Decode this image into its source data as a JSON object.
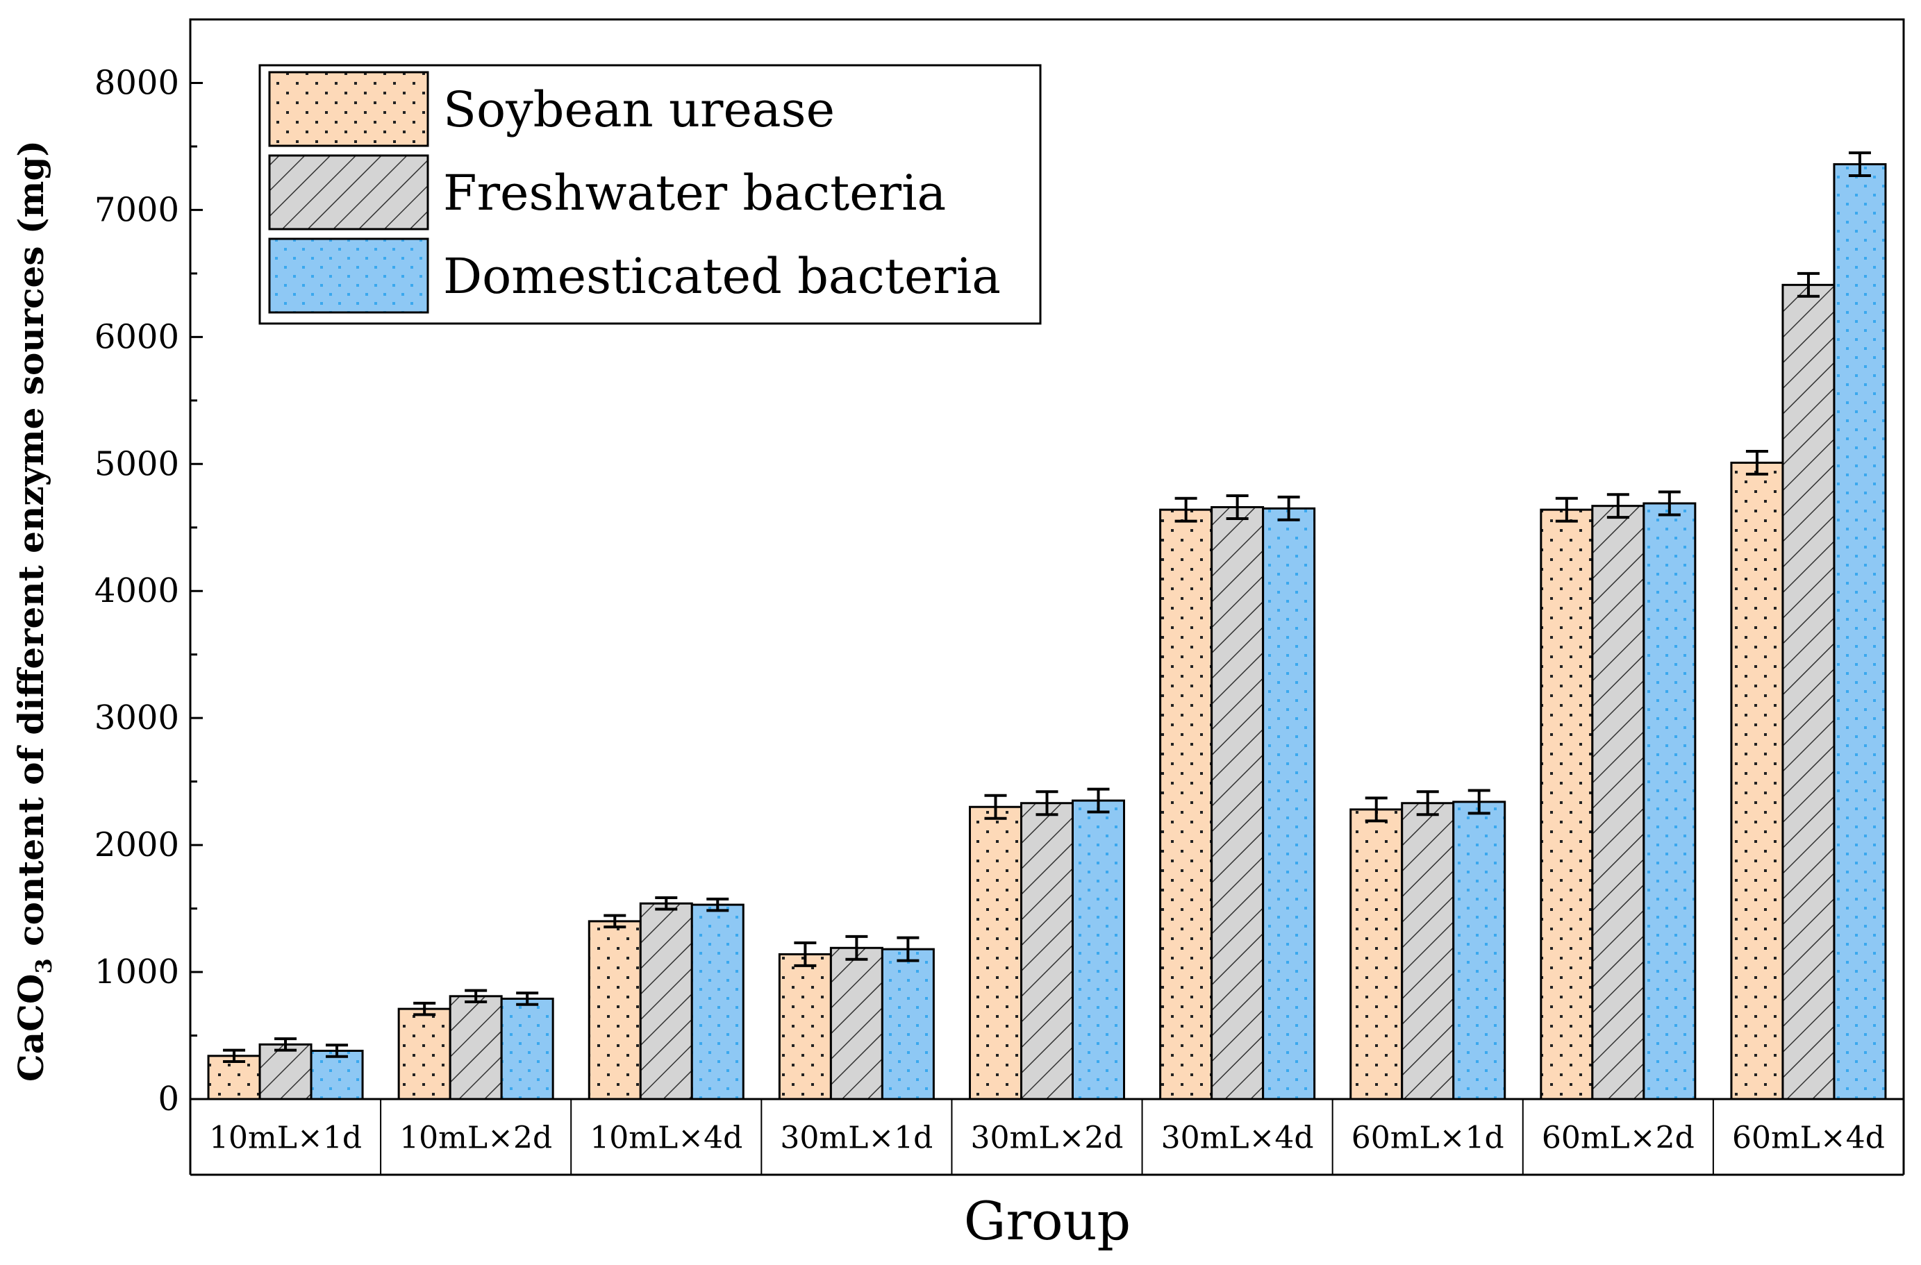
{
  "chart_data": {
    "type": "bar",
    "title": "",
    "xlabel": "Group",
    "ylabel": {
      "prefix": "CaCO",
      "subscript": "3",
      "suffix": " content of different enzyme sources (mg)"
    },
    "ylim": [
      0,
      8500
    ],
    "yticks": [
      0,
      1000,
      2000,
      3000,
      4000,
      5000,
      6000,
      7000,
      8000
    ],
    "grid": false,
    "legend_position": "top-left",
    "categories": [
      "10mL×1d",
      "10mL×2d",
      "10mL×4d",
      "30mL×1d",
      "30mL×2d",
      "30mL×4d",
      "60mL×1d",
      "60mL×2d",
      "60mL×4d"
    ],
    "series": [
      {
        "name": "Soybean urease",
        "color": "#fdd9b8",
        "pattern": "dots",
        "values": [
          340,
          710,
          1400,
          1140,
          2300,
          4640,
          2280,
          4640,
          5010
        ],
        "errors": [
          45,
          45,
          45,
          90,
          90,
          90,
          90,
          90,
          90
        ]
      },
      {
        "name": "Freshwater bacteria",
        "color": "#d4d4d4",
        "pattern": "hatch",
        "values": [
          430,
          810,
          1540,
          1190,
          2330,
          4660,
          2330,
          4670,
          6410
        ],
        "errors": [
          45,
          45,
          45,
          90,
          90,
          90,
          90,
          90,
          90
        ]
      },
      {
        "name": "Domesticated bacteria",
        "color": "#8ec8f4",
        "pattern": "blue-dots",
        "values": [
          380,
          790,
          1530,
          1180,
          2350,
          4650,
          2340,
          4690,
          7360
        ],
        "errors": [
          45,
          45,
          45,
          90,
          90,
          90,
          90,
          90,
          90
        ]
      }
    ]
  }
}
